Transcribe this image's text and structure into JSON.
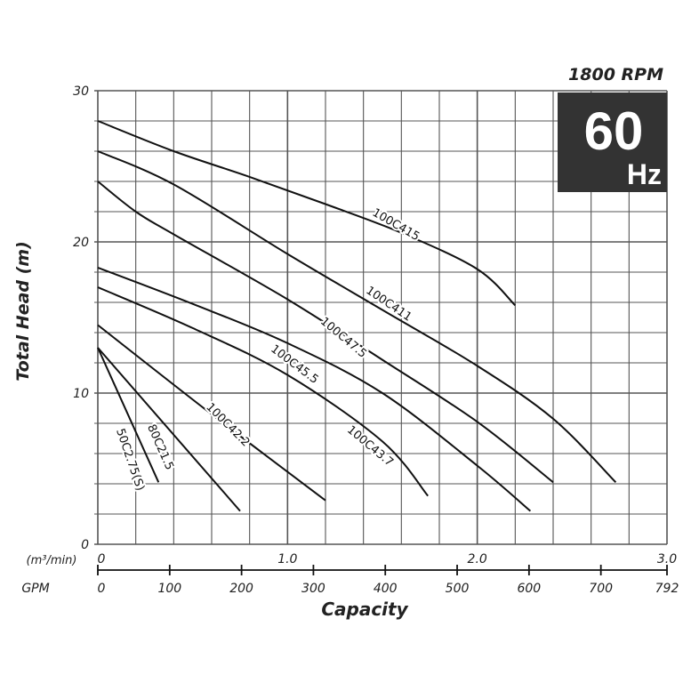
{
  "chart_data": {
    "type": "line",
    "title": "1800 RPM",
    "badge": {
      "big": "60",
      "small": "Hz",
      "color": "#333333"
    },
    "ylabel": "Total Head (m)",
    "xlabel": "Capacity",
    "x_unit_label": "(m³/min)",
    "x2_unit_label": "GPM",
    "xlim": [
      0,
      3.0
    ],
    "ylim": [
      0,
      30
    ],
    "grid": true,
    "x_grid_step": 0.2,
    "y_grid_step": 2,
    "yticks": [
      "0",
      "10",
      "20",
      "30"
    ],
    "xticks": [
      "0",
      "1.0",
      "2.0",
      "3.0"
    ],
    "x2lim": [
      0,
      792
    ],
    "x2ticks": [
      "0",
      "100",
      "200",
      "300",
      "400",
      "500",
      "600",
      "700",
      "792"
    ],
    "series": [
      {
        "name": "100C415",
        "x": [
          0,
          0.4,
          0.8,
          1.2,
          1.6,
          2.0,
          2.2
        ],
        "y": [
          28,
          26,
          24.3,
          22.5,
          20.6,
          18.2,
          15.8
        ]
      },
      {
        "name": "100C411",
        "x": [
          0,
          0.4,
          1.0,
          1.5,
          2.0,
          2.4,
          2.73
        ],
        "y": [
          26,
          23.8,
          19.2,
          15.5,
          11.8,
          8.3,
          4.1
        ]
      },
      {
        "name": "100C47.5",
        "x": [
          0,
          0.2,
          0.4,
          1.0,
          1.5,
          2.0,
          2.4
        ],
        "y": [
          24,
          22,
          20.5,
          16.2,
          12.2,
          8.1,
          4.1
        ]
      },
      {
        "name": "100C45.5",
        "x": [
          0,
          0.5,
          1.0,
          1.5,
          2.0,
          2.28
        ],
        "y": [
          18.3,
          15.9,
          13.3,
          10.0,
          5.2,
          2.2
        ]
      },
      {
        "name": "100C43.7",
        "x": [
          0,
          0.5,
          1.0,
          1.5,
          1.74
        ],
        "y": [
          17,
          14.3,
          11.2,
          6.8,
          3.2
        ]
      },
      {
        "name": "100C42.2",
        "x": [
          0,
          0.6,
          1.2
        ],
        "y": [
          14.5,
          8.6,
          2.9
        ]
      },
      {
        "name": "80C21.5",
        "x": [
          0,
          0.75
        ],
        "y": [
          13,
          2.2
        ]
      },
      {
        "name": "50C2.75(S)",
        "x": [
          0,
          0.32
        ],
        "y": [
          13,
          4.1
        ]
      }
    ]
  }
}
